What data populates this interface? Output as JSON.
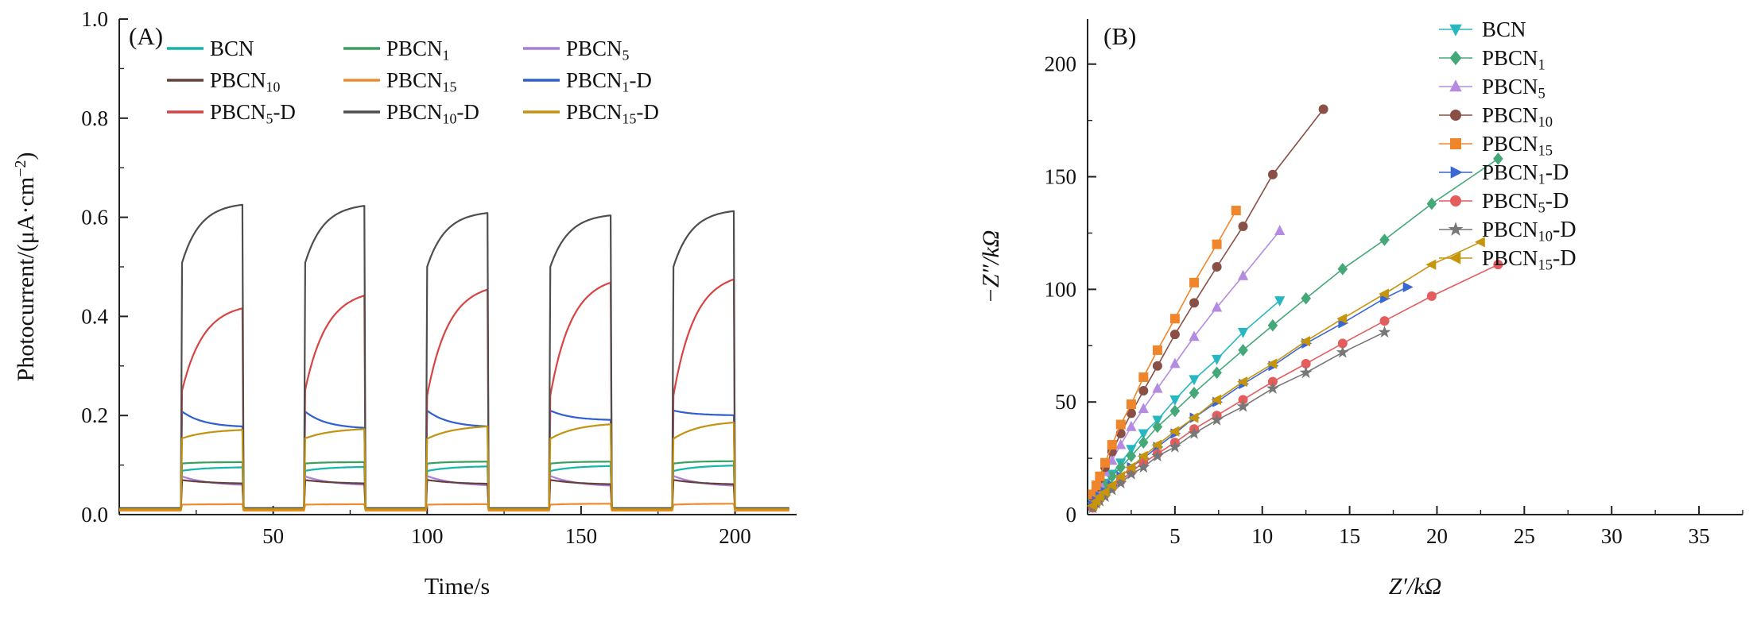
{
  "chart_data": [
    {
      "type": "line",
      "panel_label": "(A)",
      "xlabel": "Time/s",
      "ylabel": "Photocurrent/(μA·cm−2)",
      "ylabel_parts": {
        "pre": "Photocurrent/(μA·cm",
        "sup": "−2",
        "post": ")"
      },
      "xlim": [
        0,
        220
      ],
      "ylim": [
        0,
        1.0
      ],
      "x_ticks": [
        50,
        100,
        150,
        200
      ],
      "x_minor_ticks": [
        25,
        75,
        125,
        175
      ],
      "y_ticks": [
        0,
        0.2,
        0.4,
        0.6,
        0.8,
        1.0
      ],
      "y_tick_labels": [
        "0.0",
        "0.2",
        "0.4",
        "0.6",
        "0.8",
        "1.0"
      ],
      "y_minor_ticks": [
        0.1,
        0.3,
        0.5,
        0.7,
        0.9
      ],
      "grid": false,
      "legend_position": "top-left",
      "legend_columns": 3,
      "light_on_intervals": [
        [
          20,
          40
        ],
        [
          60,
          80
        ],
        [
          100,
          120
        ],
        [
          140,
          160
        ],
        [
          180,
          200
        ]
      ],
      "series": [
        {
          "label": {
            "base": "BCN",
            "sub": "",
            "suffix": ""
          },
          "color": "#14b5aa",
          "off_value": 0.012,
          "on_start": 0.088,
          "on_end_per_pulse": [
            0.096,
            0.097,
            0.098,
            0.099,
            0.1
          ],
          "tau": 8
        },
        {
          "label": {
            "base": "PBCN",
            "sub": "1",
            "suffix": ""
          },
          "color": "#3a9e5f",
          "off_value": 0.013,
          "on_start": 0.103,
          "on_end_per_pulse": [
            0.106,
            0.106,
            0.107,
            0.107,
            0.108
          ],
          "tau": 6
        },
        {
          "label": {
            "base": "PBCN",
            "sub": "5",
            "suffix": ""
          },
          "color": "#a97fd8",
          "off_value": 0.01,
          "on_start": 0.078,
          "on_end_per_pulse": [
            0.058,
            0.058,
            0.057,
            0.056,
            0.056
          ],
          "tau": 9
        },
        {
          "label": {
            "base": "PBCN",
            "sub": "10",
            "suffix": ""
          },
          "color": "#63403c",
          "off_value": 0.009,
          "on_start": 0.07,
          "on_end_per_pulse": [
            0.062,
            0.062,
            0.061,
            0.06,
            0.06
          ],
          "tau": 10
        },
        {
          "label": {
            "base": "PBCN",
            "sub": "15",
            "suffix": ""
          },
          "color": "#ee8a32",
          "off_value": 0.008,
          "on_start": 0.02,
          "on_end_per_pulse": [
            0.021,
            0.021,
            0.021,
            0.022,
            0.022
          ],
          "tau": 6
        },
        {
          "label": {
            "base": "PBCN",
            "sub": "1",
            "suffix": "-D"
          },
          "color": "#2f5fd0",
          "off_value": 0.012,
          "on_start": 0.21,
          "on_end_per_pulse": [
            0.176,
            0.173,
            0.176,
            0.19,
            0.2
          ],
          "tau": 7
        },
        {
          "label": {
            "base": "PBCN",
            "sub": "5",
            "suffix": "-D"
          },
          "color": "#d84444",
          "off_value": 0.012,
          "on_start": 0.24,
          "on_end_per_pulse": [
            0.427,
            0.455,
            0.468,
            0.483,
            0.49
          ],
          "tau": 7
        },
        {
          "label": {
            "base": "PBCN",
            "sub": "10",
            "suffix": "-D"
          },
          "color": "#4e4e4e",
          "off_value": 0.013,
          "on_start": 0.5,
          "on_end_per_pulse": [
            0.63,
            0.628,
            0.613,
            0.608,
            0.617
          ],
          "tau": 6
        },
        {
          "label": {
            "base": "PBCN",
            "sub": "15",
            "suffix": "-D"
          },
          "color": "#c2930f",
          "off_value": 0.011,
          "on_start": 0.153,
          "on_end_per_pulse": [
            0.173,
            0.175,
            0.181,
            0.186,
            0.19
          ],
          "tau": 9
        }
      ]
    },
    {
      "type": "scatter",
      "panel_label": "(B)",
      "xlabel": "Z′/kΩ",
      "ylabel": "−Z″/kΩ",
      "xlim": [
        0,
        37.5
      ],
      "ylim": [
        0,
        220
      ],
      "x_ticks": [
        5,
        10,
        15,
        20,
        25,
        30,
        35
      ],
      "x_minor_ticks": [
        2.5,
        7.5,
        12.5,
        17.5,
        22.5,
        27.5,
        32.5,
        37.5
      ],
      "y_ticks": [
        0,
        50,
        100,
        150,
        200
      ],
      "y_tick_labels": [
        "0",
        "50",
        "100",
        "150",
        "200"
      ],
      "y_minor_ticks": [
        25,
        75,
        125,
        175
      ],
      "grid": false,
      "legend_position": "top-right",
      "series": [
        {
          "label": {
            "base": "BCN",
            "sub": "",
            "suffix": ""
          },
          "color": "#27b7c0",
          "marker": "triangle-down",
          "points": [
            [
              0.3,
              5
            ],
            [
              0.5,
              8
            ],
            [
              0.7,
              11
            ],
            [
              1,
              14
            ],
            [
              1.4,
              18
            ],
            [
              1.9,
              23
            ],
            [
              2.5,
              29
            ],
            [
              3.2,
              36
            ],
            [
              4,
              42
            ],
            [
              5,
              51
            ],
            [
              6.1,
              60
            ],
            [
              7.4,
              69
            ],
            [
              8.9,
              81
            ],
            [
              11,
              95
            ]
          ]
        },
        {
          "label": {
            "base": "PBCN",
            "sub": "1",
            "suffix": ""
          },
          "color": "#45a878",
          "marker": "diamond",
          "points": [
            [
              0.3,
              5
            ],
            [
              0.5,
              7
            ],
            [
              0.7,
              10
            ],
            [
              1,
              13
            ],
            [
              1.4,
              17
            ],
            [
              1.9,
              21
            ],
            [
              2.5,
              26
            ],
            [
              3.2,
              32
            ],
            [
              4,
              39
            ],
            [
              5,
              46
            ],
            [
              6.1,
              54
            ],
            [
              7.4,
              63
            ],
            [
              8.9,
              73
            ],
            [
              10.6,
              84
            ],
            [
              12.5,
              96
            ],
            [
              14.6,
              109
            ],
            [
              17,
              122
            ],
            [
              19.7,
              138
            ],
            [
              23.5,
              158
            ]
          ]
        },
        {
          "label": {
            "base": "PBCN",
            "sub": "5",
            "suffix": ""
          },
          "color": "#b48be0",
          "marker": "triangle-up",
          "points": [
            [
              0.3,
              7
            ],
            [
              0.5,
              11
            ],
            [
              0.7,
              14
            ],
            [
              1,
              19
            ],
            [
              1.4,
              24
            ],
            [
              1.9,
              31
            ],
            [
              2.5,
              39
            ],
            [
              3.2,
              47
            ],
            [
              4,
              56
            ],
            [
              5,
              67
            ],
            [
              6.1,
              79
            ],
            [
              7.4,
              92
            ],
            [
              8.9,
              106
            ],
            [
              11,
              126
            ]
          ]
        },
        {
          "label": {
            "base": "PBCN",
            "sub": "10",
            "suffix": ""
          },
          "color": "#8a4f45",
          "marker": "circle",
          "points": [
            [
              0.3,
              8
            ],
            [
              0.5,
              12
            ],
            [
              0.7,
              16
            ],
            [
              1,
              21
            ],
            [
              1.4,
              28
            ],
            [
              1.9,
              36
            ],
            [
              2.5,
              45
            ],
            [
              3.2,
              55
            ],
            [
              4,
              66
            ],
            [
              5,
              80
            ],
            [
              6.1,
              94
            ],
            [
              7.4,
              110
            ],
            [
              8.9,
              128
            ],
            [
              10.6,
              151
            ],
            [
              13.5,
              180
            ]
          ]
        },
        {
          "label": {
            "base": "PBCN",
            "sub": "15",
            "suffix": ""
          },
          "color": "#f0862b",
          "marker": "square",
          "points": [
            [
              0.3,
              9
            ],
            [
              0.5,
              13
            ],
            [
              0.7,
              17
            ],
            [
              1,
              23
            ],
            [
              1.4,
              31
            ],
            [
              1.9,
              40
            ],
            [
              2.5,
              49
            ],
            [
              3.2,
              61
            ],
            [
              4,
              73
            ],
            [
              5,
              87
            ],
            [
              6.1,
              103
            ],
            [
              7.4,
              120
            ],
            [
              8.5,
              135
            ]
          ]
        },
        {
          "label": {
            "base": "PBCN",
            "sub": "1",
            "suffix": "-D"
          },
          "color": "#3a67d4",
          "marker": "triangle-right",
          "points": [
            [
              0.3,
              4
            ],
            [
              0.5,
              6
            ],
            [
              0.7,
              8
            ],
            [
              1,
              10
            ],
            [
              1.4,
              13
            ],
            [
              1.9,
              17
            ],
            [
              2.5,
              21
            ],
            [
              3.2,
              25
            ],
            [
              4,
              30
            ],
            [
              5,
              36
            ],
            [
              6.1,
              43
            ],
            [
              7.4,
              50
            ],
            [
              8.9,
              58
            ],
            [
              10.6,
              66
            ],
            [
              12.5,
              76
            ],
            [
              14.6,
              85
            ],
            [
              17,
              96
            ],
            [
              18.3,
              101
            ]
          ]
        },
        {
          "label": {
            "base": "PBCN",
            "sub": "5",
            "suffix": "-D"
          },
          "color": "#e45c5c",
          "marker": "circle",
          "points": [
            [
              0.3,
              3
            ],
            [
              0.5,
              5
            ],
            [
              0.7,
              7
            ],
            [
              1,
              9
            ],
            [
              1.4,
              12
            ],
            [
              1.9,
              15
            ],
            [
              2.5,
              19
            ],
            [
              3.2,
              23
            ],
            [
              4,
              27
            ],
            [
              5,
              32
            ],
            [
              6.1,
              38
            ],
            [
              7.4,
              44
            ],
            [
              8.9,
              51
            ],
            [
              10.6,
              59
            ],
            [
              12.5,
              67
            ],
            [
              14.6,
              76
            ],
            [
              17,
              86
            ],
            [
              19.7,
              97
            ],
            [
              23.5,
              111
            ]
          ]
        },
        {
          "label": {
            "base": "PBCN",
            "sub": "10",
            "suffix": "-D"
          },
          "color": "#777777",
          "marker": "star",
          "points": [
            [
              0.3,
              3
            ],
            [
              0.5,
              5
            ],
            [
              0.7,
              6
            ],
            [
              1,
              8
            ],
            [
              1.4,
              11
            ],
            [
              1.9,
              14
            ],
            [
              2.5,
              18
            ],
            [
              3.2,
              21
            ],
            [
              4,
              26
            ],
            [
              5,
              30
            ],
            [
              6.1,
              36
            ],
            [
              7.4,
              42
            ],
            [
              8.9,
              48
            ],
            [
              10.6,
              56
            ],
            [
              12.5,
              63
            ],
            [
              14.6,
              72
            ],
            [
              17,
              81
            ]
          ]
        },
        {
          "label": {
            "base": "PBCN",
            "sub": "15",
            "suffix": "-D"
          },
          "color": "#c6950c",
          "marker": "triangle-left",
          "points": [
            [
              0.3,
              4
            ],
            [
              0.5,
              6
            ],
            [
              0.7,
              8
            ],
            [
              1,
              10
            ],
            [
              1.4,
              13
            ],
            [
              1.9,
              17
            ],
            [
              2.5,
              21
            ],
            [
              3.2,
              26
            ],
            [
              4,
              31
            ],
            [
              5,
              37
            ],
            [
              6.1,
              43
            ],
            [
              7.4,
              51
            ],
            [
              8.9,
              59
            ],
            [
              10.6,
              67
            ],
            [
              12.5,
              77
            ],
            [
              14.6,
              87
            ],
            [
              17,
              98
            ],
            [
              19.7,
              111
            ],
            [
              22.5,
              121
            ]
          ]
        }
      ]
    }
  ]
}
